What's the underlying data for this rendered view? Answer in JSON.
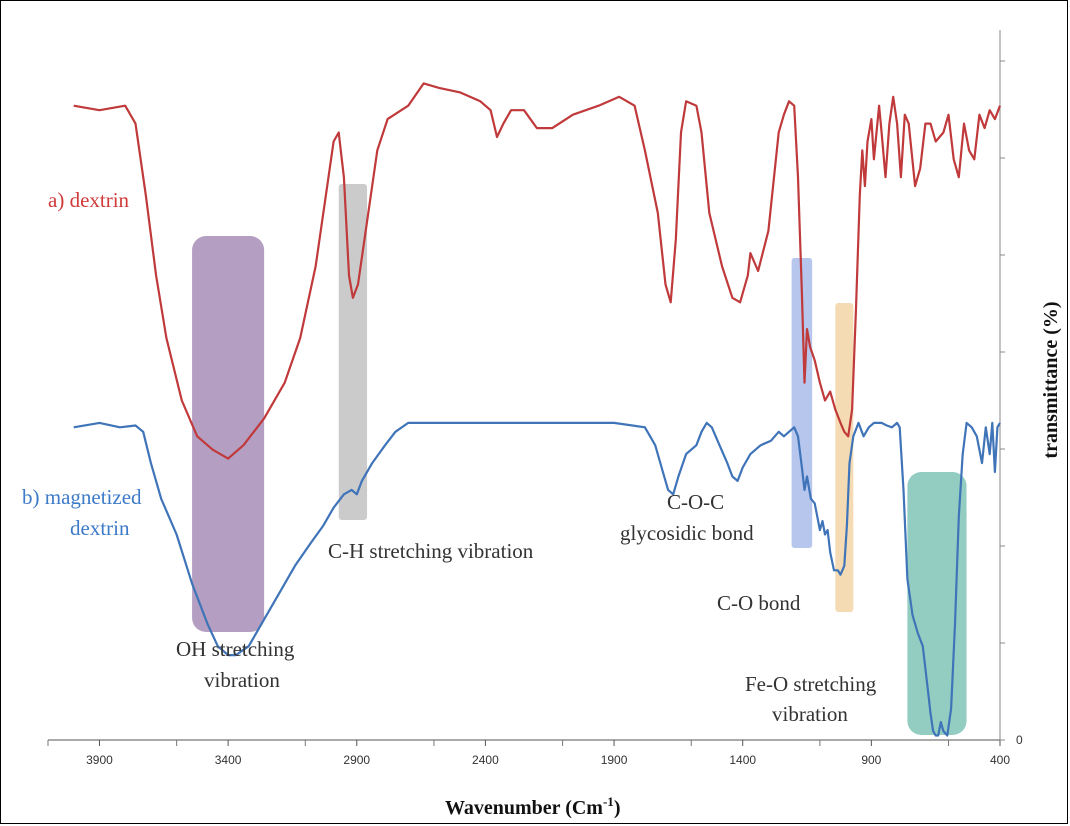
{
  "chart_data": {
    "type": "line",
    "xlabel": "Wavenumber (Cm",
    "xlabel_sup": "-1",
    "xlabel_close": ")",
    "ylabel": "transmittance (%)",
    "x_reversed": true,
    "xlim": [
      4100,
      400
    ],
    "x_ticks": [
      "3900",
      "3400",
      "2900",
      "2400",
      "1900",
      "1400",
      "900",
      "400"
    ],
    "y_tick_labels": [
      "0"
    ],
    "series": [
      {
        "name": "a) dextrin",
        "color": "#c0393b",
        "points": [
          [
            4000,
            7.1
          ],
          [
            3900,
            7.05
          ],
          [
            3800,
            7.1
          ],
          [
            3760,
            6.9
          ],
          [
            3720,
            6.1
          ],
          [
            3680,
            5.2
          ],
          [
            3640,
            4.5
          ],
          [
            3580,
            3.8
          ],
          [
            3520,
            3.4
          ],
          [
            3460,
            3.25
          ],
          [
            3400,
            3.15
          ],
          [
            3340,
            3.3
          ],
          [
            3260,
            3.6
          ],
          [
            3180,
            4.0
          ],
          [
            3120,
            4.5
          ],
          [
            3060,
            5.3
          ],
          [
            3020,
            6.1
          ],
          [
            2990,
            6.7
          ],
          [
            2970,
            6.8
          ],
          [
            2950,
            6.3
          ],
          [
            2930,
            5.2
          ],
          [
            2915,
            4.95
          ],
          [
            2895,
            5.1
          ],
          [
            2860,
            5.8
          ],
          [
            2820,
            6.6
          ],
          [
            2780,
            6.95
          ],
          [
            2700,
            7.1
          ],
          [
            2640,
            7.35
          ],
          [
            2580,
            7.3
          ],
          [
            2500,
            7.25
          ],
          [
            2420,
            7.15
          ],
          [
            2380,
            7.05
          ],
          [
            2355,
            6.75
          ],
          [
            2330,
            6.9
          ],
          [
            2300,
            7.05
          ],
          [
            2250,
            7.05
          ],
          [
            2200,
            6.85
          ],
          [
            2140,
            6.85
          ],
          [
            2060,
            7.0
          ],
          [
            1960,
            7.1
          ],
          [
            1880,
            7.2
          ],
          [
            1820,
            7.1
          ],
          [
            1780,
            6.6
          ],
          [
            1730,
            5.9
          ],
          [
            1700,
            5.1
          ],
          [
            1680,
            4.9
          ],
          [
            1660,
            5.6
          ],
          [
            1640,
            6.8
          ],
          [
            1620,
            7.15
          ],
          [
            1580,
            7.1
          ],
          [
            1560,
            6.8
          ],
          [
            1530,
            5.9
          ],
          [
            1480,
            5.3
          ],
          [
            1440,
            4.95
          ],
          [
            1410,
            4.9
          ],
          [
            1380,
            5.2
          ],
          [
            1370,
            5.45
          ],
          [
            1340,
            5.25
          ],
          [
            1300,
            5.7
          ],
          [
            1260,
            6.8
          ],
          [
            1240,
            7.0
          ],
          [
            1220,
            7.15
          ],
          [
            1200,
            7.1
          ],
          [
            1185,
            6.3
          ],
          [
            1170,
            5.0
          ],
          [
            1160,
            4.0
          ],
          [
            1150,
            4.6
          ],
          [
            1138,
            4.4
          ],
          [
            1120,
            4.25
          ],
          [
            1100,
            4.0
          ],
          [
            1080,
            3.8
          ],
          [
            1060,
            3.9
          ],
          [
            1040,
            3.7
          ],
          [
            1020,
            3.55
          ],
          [
            1005,
            3.45
          ],
          [
            990,
            3.4
          ],
          [
            975,
            3.7
          ],
          [
            960,
            4.8
          ],
          [
            945,
            6.1
          ],
          [
            935,
            6.6
          ],
          [
            925,
            6.2
          ],
          [
            915,
            6.7
          ],
          [
            900,
            6.95
          ],
          [
            890,
            6.5
          ],
          [
            880,
            6.8
          ],
          [
            870,
            7.1
          ],
          [
            860,
            6.8
          ],
          [
            845,
            6.3
          ],
          [
            830,
            6.9
          ],
          [
            815,
            7.2
          ],
          [
            800,
            6.9
          ],
          [
            785,
            6.3
          ],
          [
            770,
            7.0
          ],
          [
            755,
            6.9
          ],
          [
            730,
            6.2
          ],
          [
            710,
            6.4
          ],
          [
            690,
            6.9
          ],
          [
            670,
            6.9
          ],
          [
            650,
            6.7
          ],
          [
            620,
            6.8
          ],
          [
            600,
            7.0
          ],
          [
            580,
            6.5
          ],
          [
            560,
            6.3
          ],
          [
            540,
            6.9
          ],
          [
            520,
            6.6
          ],
          [
            500,
            6.5
          ],
          [
            480,
            7.0
          ],
          [
            460,
            6.85
          ],
          [
            440,
            7.05
          ],
          [
            420,
            6.95
          ],
          [
            400,
            7.1
          ]
        ]
      },
      {
        "name": "b) magnetized dextrin",
        "color": "#3f74b8",
        "points": [
          [
            4000,
            3.5
          ],
          [
            3900,
            3.55
          ],
          [
            3820,
            3.5
          ],
          [
            3760,
            3.52
          ],
          [
            3730,
            3.45
          ],
          [
            3700,
            3.1
          ],
          [
            3660,
            2.7
          ],
          [
            3600,
            2.3
          ],
          [
            3540,
            1.75
          ],
          [
            3480,
            1.3
          ],
          [
            3440,
            1.05
          ],
          [
            3400,
            0.95
          ],
          [
            3370,
            0.95
          ],
          [
            3320,
            1.05
          ],
          [
            3260,
            1.35
          ],
          [
            3200,
            1.65
          ],
          [
            3140,
            1.95
          ],
          [
            3080,
            2.2
          ],
          [
            3030,
            2.4
          ],
          [
            2990,
            2.6
          ],
          [
            2950,
            2.75
          ],
          [
            2920,
            2.8
          ],
          [
            2900,
            2.75
          ],
          [
            2880,
            2.9
          ],
          [
            2840,
            3.1
          ],
          [
            2790,
            3.3
          ],
          [
            2750,
            3.45
          ],
          [
            2700,
            3.55
          ],
          [
            2500,
            3.55
          ],
          [
            2200,
            3.55
          ],
          [
            1900,
            3.55
          ],
          [
            1780,
            3.5
          ],
          [
            1740,
            3.3
          ],
          [
            1710,
            3.0
          ],
          [
            1690,
            2.8
          ],
          [
            1670,
            2.75
          ],
          [
            1650,
            2.95
          ],
          [
            1620,
            3.2
          ],
          [
            1580,
            3.3
          ],
          [
            1560,
            3.45
          ],
          [
            1540,
            3.55
          ],
          [
            1520,
            3.5
          ],
          [
            1490,
            3.3
          ],
          [
            1460,
            3.1
          ],
          [
            1440,
            2.95
          ],
          [
            1420,
            2.9
          ],
          [
            1400,
            3.05
          ],
          [
            1370,
            3.2
          ],
          [
            1330,
            3.3
          ],
          [
            1290,
            3.35
          ],
          [
            1260,
            3.45
          ],
          [
            1240,
            3.4
          ],
          [
            1220,
            3.45
          ],
          [
            1200,
            3.5
          ],
          [
            1185,
            3.4
          ],
          [
            1170,
            3.05
          ],
          [
            1160,
            2.8
          ],
          [
            1150,
            2.95
          ],
          [
            1135,
            2.7
          ],
          [
            1120,
            2.65
          ],
          [
            1100,
            2.35
          ],
          [
            1090,
            2.45
          ],
          [
            1080,
            2.3
          ],
          [
            1070,
            2.35
          ],
          [
            1060,
            2.1
          ],
          [
            1045,
            1.9
          ],
          [
            1030,
            1.9
          ],
          [
            1020,
            1.85
          ],
          [
            1005,
            1.95
          ],
          [
            995,
            2.4
          ],
          [
            985,
            3.1
          ],
          [
            970,
            3.4
          ],
          [
            950,
            3.55
          ],
          [
            930,
            3.4
          ],
          [
            910,
            3.5
          ],
          [
            890,
            3.55
          ],
          [
            860,
            3.55
          ],
          [
            840,
            3.52
          ],
          [
            820,
            3.5
          ],
          [
            800,
            3.55
          ],
          [
            790,
            3.5
          ],
          [
            775,
            2.8
          ],
          [
            760,
            1.8
          ],
          [
            740,
            1.4
          ],
          [
            720,
            1.2
          ],
          [
            700,
            1.05
          ],
          [
            680,
            0.55
          ],
          [
            670,
            0.3
          ],
          [
            660,
            0.1
          ],
          [
            650,
            0.05
          ],
          [
            640,
            0.05
          ],
          [
            630,
            0.2
          ],
          [
            620,
            0.1
          ],
          [
            605,
            0.05
          ],
          [
            590,
            0.35
          ],
          [
            575,
            1.3
          ],
          [
            560,
            2.5
          ],
          [
            545,
            3.2
          ],
          [
            530,
            3.55
          ],
          [
            510,
            3.5
          ],
          [
            490,
            3.4
          ],
          [
            470,
            3.1
          ],
          [
            455,
            3.5
          ],
          [
            440,
            3.2
          ],
          [
            430,
            3.55
          ],
          [
            420,
            3.0
          ],
          [
            410,
            3.5
          ],
          [
            400,
            3.55
          ]
        ]
      }
    ],
    "bands": [
      {
        "name": "OH stretching vibration",
        "from": 3540,
        "to": 3260,
        "color": "#9b7fae"
      },
      {
        "name": "C-H stretching vibration",
        "from": 2970,
        "to": 2860,
        "color": "#b9b9b9"
      },
      {
        "name": "C-O-C glycosidic bond",
        "from": 1210,
        "to": 1130,
        "color": "#9db3e6"
      },
      {
        "name": "C-O bond",
        "from": 1040,
        "to": 970,
        "color": "#f0cf9a"
      },
      {
        "name": "Fe-O stretching vibration",
        "from": 760,
        "to": 530,
        "color": "#6fbcad"
      }
    ]
  },
  "labels": {
    "series_a": "a) dextrin",
    "series_b_line1": "b) magnetized",
    "series_b_line2": "dextrin",
    "ch_band": "C-H stretching vibration",
    "oh_band_line1": "OH stretching",
    "oh_band_line2": "vibration",
    "coc_line1": "C-O-C",
    "coc_line2": "glycosidic bond",
    "co_band": "C-O bond",
    "feo_line1": "Fe-O stretching",
    "feo_line2": "vibration"
  }
}
